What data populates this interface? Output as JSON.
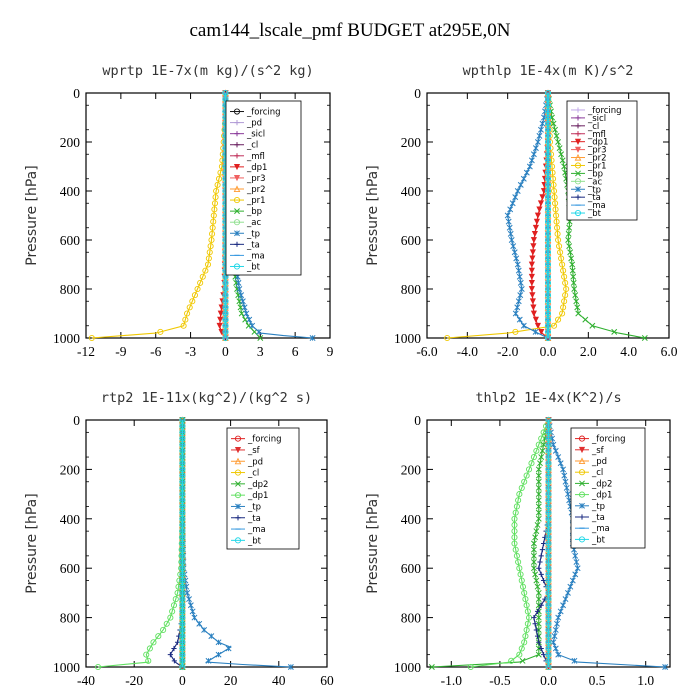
{
  "page": {
    "title": "cam144_lscale_pmf  BUDGET at295E,0N"
  },
  "chart_data": [
    {
      "type": "line",
      "title": "wprtp  1E-7x(m kg)/(s^2 kg)",
      "ylabel": "Pressure [hPa]",
      "xlim": [
        -12,
        9
      ],
      "ylim": [
        1000,
        0
      ],
      "xticks": [
        -12,
        -9,
        -6,
        -3,
        0,
        3,
        6,
        9
      ],
      "xtick_labels": [
        "-12",
        "-9",
        "-6",
        "-3",
        "0",
        "3",
        "6",
        "9"
      ],
      "yticks": [
        0,
        200,
        400,
        600,
        800,
        1000
      ],
      "legend": "top-right",
      "series": [
        {
          "name": "_forcing",
          "color": "#111111",
          "marker": "o",
          "p": [
            0,
            1000
          ],
          "x": [
            0,
            0
          ]
        },
        {
          "name": "_pd",
          "color": "#b09ad6",
          "marker": "+",
          "p": [
            0,
            1000
          ],
          "x": [
            0,
            0
          ]
        },
        {
          "name": "_sicl",
          "color": "#8a3a9a",
          "marker": "+",
          "p": [
            0,
            1000
          ],
          "x": [
            0,
            0
          ]
        },
        {
          "name": "_cl",
          "color": "#6a2060",
          "marker": "+",
          "p": [
            0,
            1000
          ],
          "x": [
            0,
            0
          ]
        },
        {
          "name": "_mfl",
          "color": "#c0305a",
          "marker": "+",
          "p": [
            0,
            1000
          ],
          "x": [
            0,
            0
          ]
        },
        {
          "name": "_dp1",
          "color": "#e02020",
          "marker": "v",
          "p": [
            0,
            300,
            600,
            800,
            900,
            950,
            980,
            1000
          ],
          "x": [
            0,
            0,
            0,
            -0.1,
            -0.4,
            -0.5,
            -0.3,
            0
          ]
        },
        {
          "name": "_pr3",
          "color": "#f06060",
          "marker": "v",
          "p": [
            0,
            1000
          ],
          "x": [
            0,
            0
          ]
        },
        {
          "name": "_pr2",
          "color": "#ff9a30",
          "marker": "^",
          "p": [
            0,
            1000
          ],
          "x": [
            0,
            0
          ]
        },
        {
          "name": "_pr1",
          "color": "#f0c800",
          "marker": "o",
          "p": [
            0,
            100,
            300,
            400,
            500,
            600,
            700,
            800,
            900,
            950,
            980,
            1000
          ],
          "x": [
            0,
            0,
            -0.3,
            -0.8,
            -1.0,
            -1.2,
            -1.5,
            -2.4,
            -3.3,
            -3.6,
            -6,
            -11.5
          ]
        },
        {
          "name": "_bp",
          "color": "#30b030",
          "marker": "x",
          "p": [
            0,
            300,
            500,
            600,
            700,
            800,
            900,
            950,
            980,
            1000
          ],
          "x": [
            0,
            0.1,
            0.4,
            0.5,
            0.7,
            1.0,
            1.4,
            2.0,
            2.6,
            3.0
          ]
        },
        {
          "name": "_ac",
          "color": "#90e090",
          "marker": "o",
          "p": [
            0,
            1000
          ],
          "x": [
            0,
            0
          ]
        },
        {
          "name": "_tp",
          "color": "#2a80c0",
          "marker": "*",
          "p": [
            0,
            300,
            500,
            600,
            700,
            800,
            900,
            950,
            980,
            990,
            1000
          ],
          "x": [
            0,
            0.2,
            0.5,
            0.7,
            0.9,
            1.2,
            1.8,
            2.3,
            3.0,
            5.0,
            7.5
          ]
        },
        {
          "name": "_ta",
          "color": "#1a2a80",
          "marker": "+",
          "p": [
            0,
            1000
          ],
          "x": [
            0,
            0
          ]
        },
        {
          "name": "_ma",
          "color": "#3a9ae0",
          "marker": "-",
          "p": [
            0,
            1000
          ],
          "x": [
            0,
            0
          ]
        },
        {
          "name": "_bt",
          "color": "#20d8e8",
          "marker": "o",
          "p": [
            0,
            1000
          ],
          "x": [
            0,
            0
          ]
        }
      ]
    },
    {
      "type": "line",
      "title": "wpthlp  1E-4x(m K)/s^2",
      "ylabel": "Pressure [hPa]",
      "xlim": [
        -6,
        6
      ],
      "ylim": [
        1000,
        0
      ],
      "xticks": [
        -6,
        -4,
        -2,
        0,
        2,
        4,
        6
      ],
      "xtick_labels": [
        "-6.0",
        "-4.0",
        "-2.0",
        "0.0",
        "2.0",
        "4.0",
        "6.0"
      ],
      "yticks": [
        0,
        200,
        400,
        600,
        800,
        1000
      ],
      "legend": "top-right",
      "series": [
        {
          "name": "_forcing",
          "color": "#c0a8e8",
          "marker": "+",
          "p": [
            0,
            1000
          ],
          "x": [
            0,
            0
          ]
        },
        {
          "name": "_sicl",
          "color": "#8a3a9a",
          "marker": "+",
          "p": [
            0,
            1000
          ],
          "x": [
            0,
            0
          ]
        },
        {
          "name": "_cl",
          "color": "#6a2060",
          "marker": "+",
          "p": [
            0,
            1000
          ],
          "x": [
            0,
            0
          ]
        },
        {
          "name": "_mfl",
          "color": "#c0305a",
          "marker": "+",
          "p": [
            0,
            1000
          ],
          "x": [
            0,
            0
          ]
        },
        {
          "name": "_dp1",
          "color": "#e02020",
          "marker": "v",
          "p": [
            0,
            100,
            200,
            300,
            400,
            500,
            600,
            700,
            800,
            900,
            950,
            980,
            1000
          ],
          "x": [
            0,
            0,
            0,
            -0.1,
            -0.2,
            -0.5,
            -0.7,
            -0.8,
            -0.8,
            -0.7,
            -0.5,
            -0.3,
            0
          ]
        },
        {
          "name": "_pr3",
          "color": "#f06060",
          "marker": "v",
          "p": [
            0,
            1000
          ],
          "x": [
            0,
            0
          ]
        },
        {
          "name": "_pr2",
          "color": "#ff9a30",
          "marker": "^",
          "p": [
            0,
            1000
          ],
          "x": [
            0,
            0
          ]
        },
        {
          "name": "_pr1",
          "color": "#f0c800",
          "marker": "o",
          "p": [
            0,
            200,
            400,
            500,
            600,
            700,
            800,
            900,
            950,
            980,
            1000
          ],
          "x": [
            0,
            0.1,
            0.3,
            0.4,
            0.5,
            0.7,
            0.9,
            0.7,
            0.3,
            -2.0,
            -5.0
          ]
        },
        {
          "name": "_bp",
          "color": "#30b030",
          "marker": "x",
          "p": [
            0,
            100,
            200,
            300,
            400,
            500,
            600,
            700,
            800,
            900,
            950,
            980,
            1000
          ],
          "x": [
            0,
            0.2,
            0.5,
            0.8,
            1.0,
            1.1,
            1.0,
            1.2,
            1.3,
            1.5,
            2.2,
            3.5,
            4.8
          ]
        },
        {
          "name": "_ac",
          "color": "#90e090",
          "marker": "o",
          "p": [
            0,
            1000
          ],
          "x": [
            0,
            0
          ]
        },
        {
          "name": "_tp",
          "color": "#2a80c0",
          "marker": "*",
          "p": [
            0,
            100,
            200,
            300,
            400,
            500,
            600,
            700,
            800,
            900,
            950,
            980,
            1000
          ],
          "x": [
            0,
            -0.2,
            -0.5,
            -0.9,
            -1.5,
            -2.0,
            -1.8,
            -1.5,
            -1.3,
            -1.6,
            -1.2,
            -0.5,
            0
          ]
        },
        {
          "name": "_ta",
          "color": "#1a2a80",
          "marker": "+",
          "p": [
            0,
            1000
          ],
          "x": [
            0,
            0
          ]
        },
        {
          "name": "_ma",
          "color": "#3a9ae0",
          "marker": "-",
          "p": [
            0,
            1000
          ],
          "x": [
            0,
            0
          ]
        },
        {
          "name": "_bt",
          "color": "#20d8e8",
          "marker": "o",
          "p": [
            0,
            1000
          ],
          "x": [
            0,
            0
          ]
        }
      ]
    },
    {
      "type": "line",
      "title": "rtp2  1E-11x(kg^2)/(kg^2 s)",
      "ylabel": "Pressure [hPa]",
      "xlim": [
        -40,
        60
      ],
      "ylim": [
        1000,
        0
      ],
      "xticks": [
        -40,
        -20,
        0,
        20,
        40,
        60
      ],
      "xtick_labels": [
        "-40",
        "-20",
        "0",
        "20",
        "40",
        "60"
      ],
      "yticks": [
        0,
        200,
        400,
        600,
        800,
        1000
      ],
      "legend": "top-right",
      "series": [
        {
          "name": "_forcing",
          "color": "#e02020",
          "marker": "o",
          "p": [
            0,
            1000
          ],
          "x": [
            0,
            0
          ]
        },
        {
          "name": "_sf",
          "color": "#e03030",
          "marker": "v",
          "p": [
            0,
            1000
          ],
          "x": [
            0,
            0
          ]
        },
        {
          "name": "_pd",
          "color": "#ff9a30",
          "marker": "^",
          "p": [
            0,
            1000
          ],
          "x": [
            0,
            0
          ]
        },
        {
          "name": "_cl",
          "color": "#f0c800",
          "marker": "o",
          "p": [
            0,
            1000
          ],
          "x": [
            0,
            0
          ]
        },
        {
          "name": "_dp2",
          "color": "#30b030",
          "marker": "x",
          "p": [
            0,
            1000
          ],
          "x": [
            0,
            0
          ]
        },
        {
          "name": "_dp1",
          "color": "#60e060",
          "marker": "o",
          "p": [
            0,
            400,
            600,
            700,
            800,
            850,
            900,
            950,
            980,
            1000
          ],
          "x": [
            0,
            0,
            -0.5,
            -2,
            -5,
            -8,
            -12,
            -15,
            -14,
            -35
          ]
        },
        {
          "name": "_tp",
          "color": "#2a80c0",
          "marker": "*",
          "p": [
            0,
            400,
            600,
            700,
            800,
            850,
            900,
            920,
            950,
            980,
            990,
            1000
          ],
          "x": [
            0,
            0,
            0.5,
            2,
            5,
            9,
            15,
            20,
            15,
            10,
            25,
            45
          ]
        },
        {
          "name": "_ta",
          "color": "#1a2a80",
          "marker": "+",
          "p": [
            0,
            800,
            900,
            950,
            980,
            1000
          ],
          "x": [
            0,
            0,
            -2,
            -5,
            -3,
            0
          ]
        },
        {
          "name": "_ma",
          "color": "#3a9ae0",
          "marker": "-",
          "p": [
            0,
            1000
          ],
          "x": [
            0,
            0
          ]
        },
        {
          "name": "_bt",
          "color": "#20d8e8",
          "marker": "o",
          "p": [
            0,
            1000
          ],
          "x": [
            0,
            0
          ]
        }
      ]
    },
    {
      "type": "line",
      "title": "thlp2  1E-4x(K^2)/s",
      "ylabel": "Pressure [hPa]",
      "xlim": [
        -1.25,
        1.25
      ],
      "ylim": [
        1000,
        0
      ],
      "xticks": [
        -1.0,
        -0.5,
        0,
        0.5,
        1.0
      ],
      "xtick_labels": [
        "-1.0",
        "-0.5",
        "0.0",
        "0.5",
        "1.0"
      ],
      "yticks": [
        0,
        200,
        400,
        600,
        800,
        1000
      ],
      "legend": "top-right",
      "series": [
        {
          "name": "_forcing",
          "color": "#e02020",
          "marker": "o",
          "p": [
            0,
            1000
          ],
          "x": [
            0,
            0
          ]
        },
        {
          "name": "_sf",
          "color": "#e03030",
          "marker": "v",
          "p": [
            0,
            1000
          ],
          "x": [
            0,
            0
          ]
        },
        {
          "name": "_pd",
          "color": "#ff9a30",
          "marker": "^",
          "p": [
            0,
            1000
          ],
          "x": [
            0,
            0
          ]
        },
        {
          "name": "_cl",
          "color": "#f0c800",
          "marker": "o",
          "p": [
            0,
            1000
          ],
          "x": [
            0,
            0
          ]
        },
        {
          "name": "_dp2",
          "color": "#30b030",
          "marker": "x",
          "p": [
            0,
            100,
            200,
            300,
            400,
            500,
            600,
            700,
            800,
            900,
            950,
            980,
            1000
          ],
          "x": [
            0,
            -0.05,
            -0.1,
            -0.1,
            -0.1,
            -0.15,
            -0.15,
            -0.1,
            -0.1,
            -0.1,
            -0.1,
            -0.3,
            -1.2
          ]
        },
        {
          "name": "_dp1",
          "color": "#60e060",
          "marker": "o",
          "p": [
            0,
            100,
            200,
            300,
            400,
            500,
            600,
            700,
            800,
            900,
            950,
            980,
            1000
          ],
          "x": [
            0,
            -0.1,
            -0.2,
            -0.3,
            -0.35,
            -0.35,
            -0.3,
            -0.25,
            -0.2,
            -0.25,
            -0.3,
            -0.4,
            -0.8
          ]
        },
        {
          "name": "_tp",
          "color": "#2a80c0",
          "marker": "*",
          "p": [
            0,
            100,
            200,
            300,
            400,
            500,
            600,
            700,
            800,
            900,
            950,
            980,
            1000
          ],
          "x": [
            0,
            0.05,
            0.15,
            0.2,
            0.25,
            0.25,
            0.3,
            0.2,
            0.1,
            0.05,
            0.1,
            0.3,
            1.2
          ]
        },
        {
          "name": "_ta",
          "color": "#1a2a80",
          "marker": "+",
          "p": [
            0,
            200,
            400,
            500,
            600,
            700,
            800,
            900,
            950,
            1000
          ],
          "x": [
            0,
            0,
            0,
            -0.05,
            -0.1,
            0,
            -0.15,
            -0.1,
            -0.05,
            0
          ]
        },
        {
          "name": "_ma",
          "color": "#3a9ae0",
          "marker": "-",
          "p": [
            0,
            1000
          ],
          "x": [
            0,
            0
          ]
        },
        {
          "name": "_bt",
          "color": "#20d8e8",
          "marker": "o",
          "p": [
            0,
            1000
          ],
          "x": [
            0,
            0
          ]
        }
      ]
    }
  ]
}
